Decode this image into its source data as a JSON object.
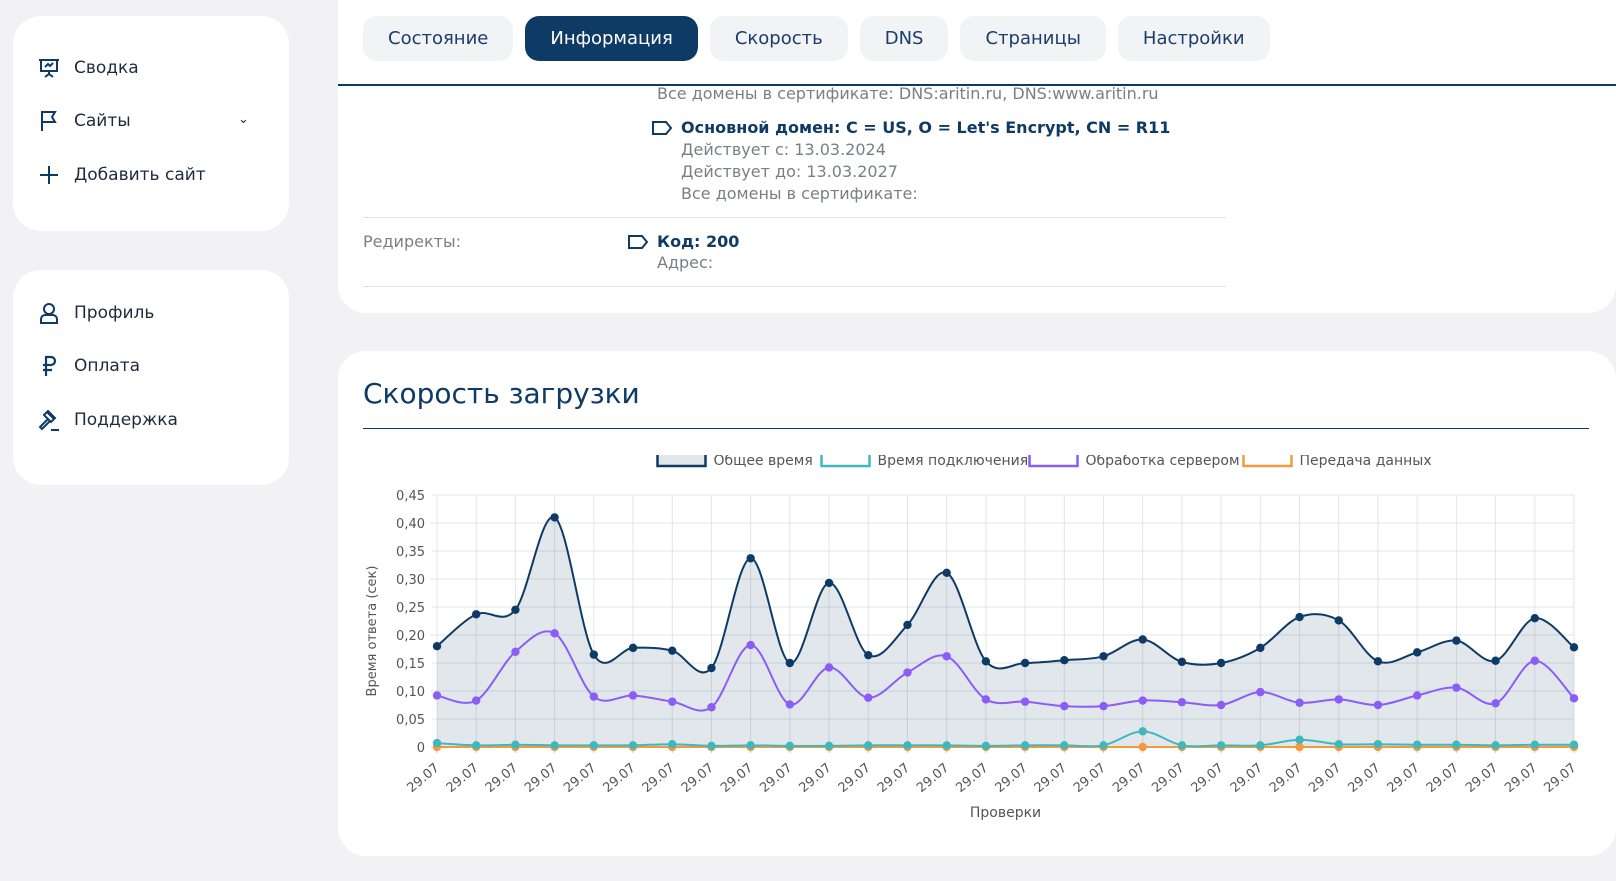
{
  "sidebar": {
    "group1": [
      {
        "label": "Сводка",
        "icon": "presentation-icon"
      },
      {
        "label": "Сайты",
        "icon": "flag-icon"
      },
      {
        "label": "Добавить сайт",
        "icon": "plus-icon"
      }
    ],
    "group2": [
      {
        "label": "Профиль",
        "icon": "user-icon"
      },
      {
        "label": "Оплата",
        "icon": "ruble-icon"
      },
      {
        "label": "Поддержка",
        "icon": "gavel-icon"
      }
    ]
  },
  "tabs": [
    "Состояние",
    "Информация",
    "Скорость",
    "DNS",
    "Страницы",
    "Настройки"
  ],
  "active_tab": "Информация",
  "certificate": {
    "prev_domains": "Все домены в сертификате: DNS:aritin.ru, DNS:www.aritin.ru",
    "main_domain": "Основной домен: C = US, O = Let's Encrypt, CN = R11",
    "valid_from": "Действует с: 13.03.2024",
    "valid_to": "Действует до: 13.03.2027",
    "domains": "Все домены в сертификате:"
  },
  "redirects": {
    "label": "Редиректы:",
    "code": "Код: 200",
    "address": "Адрес:"
  },
  "chart_title": "Скорость загрузки",
  "chart_data": {
    "type": "area",
    "xlabel": "Проверки",
    "ylabel": "Время ответа (сек)",
    "ylim": [
      0,
      0.45
    ],
    "yticks": [
      "0",
      "0,05",
      "0,10",
      "0,15",
      "0,20",
      "0,25",
      "0,30",
      "0,35",
      "0,40",
      "0,45"
    ],
    "x": [
      "29.07",
      "29.07",
      "29.07",
      "29.07",
      "29.07",
      "29.07",
      "29.07",
      "29.07",
      "29.07",
      "29.07",
      "29.07",
      "29.07",
      "29.07",
      "29.07",
      "29.07",
      "29.07",
      "29.07",
      "29.07",
      "29.07",
      "29.07",
      "29.07",
      "29.07",
      "29.07",
      "29.07",
      "29.07",
      "29.07",
      "29.07",
      "29.07",
      "29.07",
      "29.07"
    ],
    "grid": true,
    "legend": "top",
    "series": [
      {
        "name": "Общее время",
        "color": "#0e3a66",
        "values": [
          0.18,
          0.237,
          0.245,
          0.41,
          0.165,
          0.177,
          0.172,
          0.141,
          0.337,
          0.15,
          0.293,
          0.164,
          0.218,
          0.311,
          0.153,
          0.15,
          0.155,
          0.162,
          0.192,
          0.152,
          0.15,
          0.177,
          0.232,
          0.226,
          0.153,
          0.169,
          0.19,
          0.154,
          0.23,
          0.178
        ]
      },
      {
        "name": "Время подключения",
        "color": "#3fb8bd",
        "values": [
          0.007,
          0.003,
          0.004,
          0.003,
          0.003,
          0.003,
          0.005,
          0.002,
          0.003,
          0.002,
          0.002,
          0.003,
          0.003,
          0.003,
          0.002,
          0.003,
          0.003,
          0.003,
          0.028,
          0.003,
          0.003,
          0.003,
          0.013,
          0.005,
          0.005,
          0.004,
          0.004,
          0.003,
          0.004,
          0.004
        ]
      },
      {
        "name": "Обработка сервером",
        "color": "#8b5cf6",
        "values": [
          0.092,
          0.083,
          0.17,
          0.203,
          0.09,
          0.092,
          0.081,
          0.071,
          0.182,
          0.076,
          0.142,
          0.088,
          0.133,
          0.162,
          0.085,
          0.081,
          0.073,
          0.073,
          0.083,
          0.08,
          0.075,
          0.098,
          0.079,
          0.085,
          0.075,
          0.092,
          0.106,
          0.078,
          0.154,
          0.087
        ]
      },
      {
        "name": "Передача данных",
        "color": "#f59a3c",
        "values": [
          0,
          0,
          0,
          0,
          0,
          0,
          0,
          0,
          0,
          0,
          0,
          0,
          0,
          0,
          0,
          0,
          0,
          0,
          0,
          0,
          0,
          0,
          0,
          0,
          0,
          0,
          0,
          0,
          0,
          0
        ]
      }
    ]
  }
}
